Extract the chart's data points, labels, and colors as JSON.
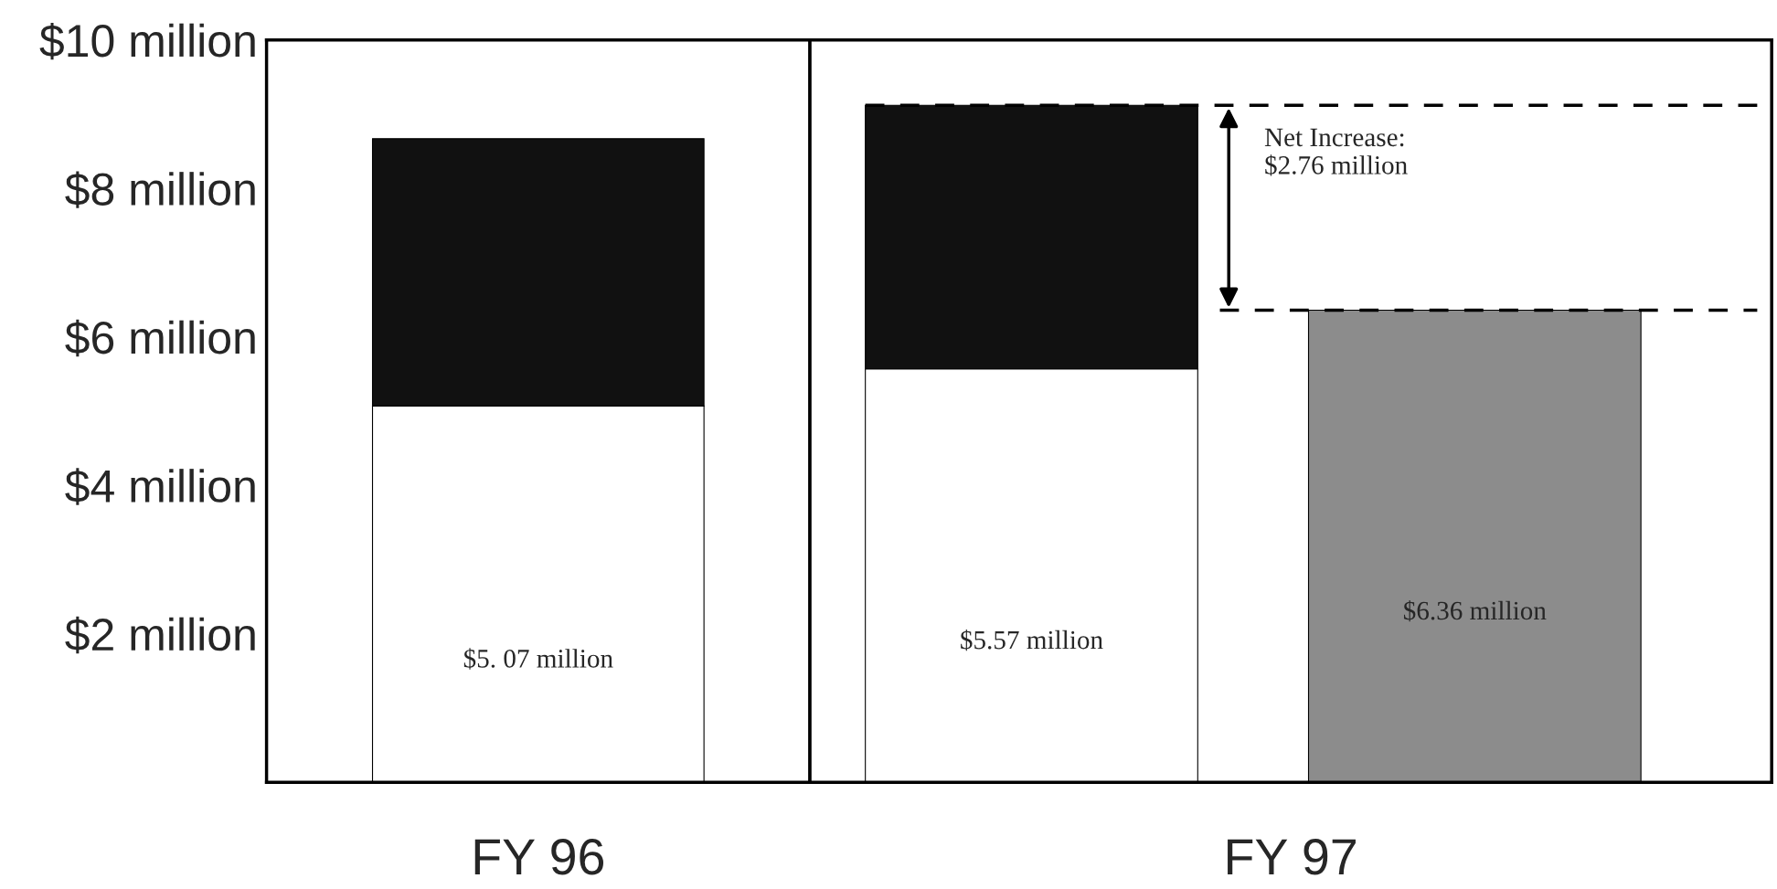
{
  "chart_data": [
    {
      "type": "bar",
      "stacked": true,
      "xlabel": "FY 96",
      "categories": [
        null
      ],
      "ylim": [
        0,
        10
      ],
      "yticks": [
        {
          "value": 2,
          "label": "$2 million"
        },
        {
          "value": 4,
          "label": "$4 million"
        },
        {
          "value": 6,
          "label": "$6 million"
        },
        {
          "value": 8,
          "label": "$8 million"
        },
        {
          "value": 10,
          "label": "$10 million"
        }
      ],
      "series": [
        {
          "color": "#ffffff",
          "values": [
            5.07
          ],
          "value_labels": [
            "$5. 07 million"
          ]
        },
        {
          "color": "#111111",
          "values": [
            3.6
          ]
        }
      ],
      "grid": false,
      "legend": false
    },
    {
      "type": "bar",
      "stacked": true,
      "xlabel": "FY 97",
      "categories": [
        null,
        null
      ],
      "ylim": [
        0,
        10
      ],
      "tick_labels": "x",
      "series": [
        {
          "color": "#ffffff",
          "values": [
            5.57,
            null
          ],
          "value_labels": [
            "$5.57 million",
            null
          ]
        },
        {
          "color": "#111111",
          "values": [
            3.55,
            null
          ]
        },
        {
          "color": "#8c8c8c",
          "values": [
            null,
            6.36
          ],
          "value_labels": [
            null,
            "$6.36 million"
          ]
        }
      ],
      "ref_lines": [
        {
          "axis": "y",
          "value": 9.12,
          "line_style": "dashed",
          "color": "#000000"
        },
        {
          "axis": "y",
          "value": 6.36,
          "line_style": "dashed",
          "color": "#000000"
        }
      ],
      "annotations": [
        "Net Increase:\n$2.76 million"
      ],
      "grid": false,
      "legend": false
    }
  ]
}
